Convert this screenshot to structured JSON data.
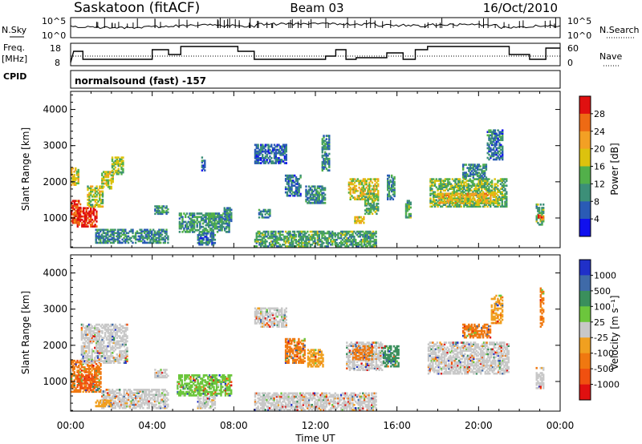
{
  "header": {
    "site": "Saskatoon (fitACF)",
    "beam": "Beam 03",
    "date": "16/Oct/2010"
  },
  "status_panels": {
    "nsky_label": "N.Sky",
    "nsearch_label": "N.Search",
    "nsky_ticks": [
      "10^5",
      "10^0"
    ],
    "nsearch_ticks": [
      "10^5",
      "10^0"
    ],
    "freq_label": "Freq.",
    "freq_unit": "[MHz]",
    "freq_ticks": [
      "18",
      "8"
    ],
    "nave_label": "Nave",
    "nave_ticks": [
      "60",
      "0"
    ],
    "cpid_label": "CPID",
    "cpid_value": "normalsound (fast) -157"
  },
  "chart_data": [
    {
      "type": "heatmap",
      "quantity": "Power",
      "ylabel": "Slant Range [km]",
      "xlabel": "",
      "ylim": [
        180,
        4500
      ],
      "xlim_hours": [
        0,
        24
      ],
      "yticks": [
        1000,
        2000,
        3000,
        4000
      ],
      "colorbar_label": "Power [dB]",
      "colorbar_ticks": [
        "4",
        "8",
        "12",
        "16",
        "20",
        "24",
        "28"
      ],
      "colorbar_colors": [
        "#1010ee",
        "#2a5bb5",
        "#3c8f78",
        "#52b04a",
        "#dcc20e",
        "#f3a024",
        "#ee6a14",
        "#e01010"
      ],
      "regions": [
        {
          "t0": 0.0,
          "t1": 0.5,
          "r0": 850,
          "r1": 1500,
          "v": 28
        },
        {
          "t0": 0.3,
          "t1": 1.3,
          "r0": 750,
          "r1": 1300,
          "v": 30
        },
        {
          "t0": 0.0,
          "t1": 0.4,
          "r0": 1900,
          "r1": 2400,
          "v": 18
        },
        {
          "t0": 0.8,
          "t1": 1.6,
          "r0": 1300,
          "r1": 1900,
          "v": 16
        },
        {
          "t0": 1.5,
          "t1": 2.1,
          "r0": 1800,
          "r1": 2300,
          "v": 17
        },
        {
          "t0": 2.0,
          "t1": 2.6,
          "r0": 2200,
          "r1": 2700,
          "v": 15
        },
        {
          "t0": 1.2,
          "t1": 4.8,
          "r0": 300,
          "r1": 700,
          "v": 9
        },
        {
          "t0": 4.1,
          "t1": 4.8,
          "r0": 1100,
          "r1": 1350,
          "v": 10
        },
        {
          "t0": 5.3,
          "t1": 7.8,
          "r0": 600,
          "r1": 1150,
          "v": 11
        },
        {
          "t0": 6.2,
          "t1": 7.1,
          "r0": 250,
          "r1": 600,
          "v": 8
        },
        {
          "t0": 6.4,
          "t1": 6.6,
          "r0": 2300,
          "r1": 2700,
          "v": 8
        },
        {
          "t0": 7.5,
          "t1": 7.9,
          "r0": 900,
          "r1": 1300,
          "v": 10
        },
        {
          "t0": 9.0,
          "t1": 15.0,
          "r0": 200,
          "r1": 650,
          "v": 12
        },
        {
          "t0": 9.0,
          "t1": 10.6,
          "r0": 2500,
          "r1": 3050,
          "v": 7
        },
        {
          "t0": 9.2,
          "t1": 9.8,
          "r0": 1000,
          "r1": 1250,
          "v": 9
        },
        {
          "t0": 10.5,
          "t1": 11.3,
          "r0": 1600,
          "r1": 2200,
          "v": 8
        },
        {
          "t0": 11.5,
          "t1": 12.5,
          "r0": 1400,
          "r1": 1900,
          "v": 9
        },
        {
          "t0": 12.3,
          "t1": 12.7,
          "r0": 2300,
          "r1": 3300,
          "v": 9
        },
        {
          "t0": 13.6,
          "t1": 15.1,
          "r0": 1500,
          "r1": 2100,
          "v": 18
        },
        {
          "t0": 13.9,
          "t1": 14.4,
          "r0": 850,
          "r1": 1050,
          "v": 20
        },
        {
          "t0": 14.4,
          "t1": 15.1,
          "r0": 1100,
          "r1": 1700,
          "v": 13
        },
        {
          "t0": 15.5,
          "t1": 15.9,
          "r0": 1500,
          "r1": 2200,
          "v": 10
        },
        {
          "t0": 16.4,
          "t1": 16.7,
          "r0": 1000,
          "r1": 1500,
          "v": 12
        },
        {
          "t0": 17.6,
          "t1": 21.4,
          "r0": 1300,
          "r1": 2100,
          "v": 14
        },
        {
          "t0": 18.0,
          "t1": 20.9,
          "r0": 1400,
          "r1": 1700,
          "v": 20
        },
        {
          "t0": 19.2,
          "t1": 20.4,
          "r0": 2100,
          "r1": 2500,
          "v": 9
        },
        {
          "t0": 20.4,
          "t1": 21.2,
          "r0": 2600,
          "r1": 3450,
          "v": 8
        },
        {
          "t0": 22.8,
          "t1": 23.2,
          "r0": 800,
          "r1": 1400,
          "v": 12
        },
        {
          "t0": 22.9,
          "t1": 23.2,
          "r0": 900,
          "r1": 1100,
          "v": 26
        }
      ]
    },
    {
      "type": "heatmap",
      "quantity": "Velocity",
      "ylabel": "Slant Range [km]",
      "xlabel": "Time UT",
      "ylim": [
        180,
        4500
      ],
      "xlim_hours": [
        0,
        24
      ],
      "yticks": [
        1000,
        2000,
        3000,
        4000
      ],
      "xticks": [
        "00:00",
        "04:00",
        "08:00",
        "12:00",
        "16:00",
        "20:00",
        "00:00"
      ],
      "colorbar_label": "Velocity [m s⁻¹]",
      "colorbar_ticks": [
        "1000",
        "500",
        "100",
        "25",
        "-25",
        "-100",
        "-500",
        "-1000"
      ],
      "colorbar_colors": [
        "#2030c8",
        "#3f6aa8",
        "#3a8f5c",
        "#6cc63c",
        "#c8c8c8",
        "#f0a020",
        "#f07810",
        "#f05010",
        "#e01010"
      ],
      "regions": [
        {
          "t0": 0.0,
          "t1": 1.5,
          "r0": 700,
          "r1": 1600,
          "c": "#f07810"
        },
        {
          "t0": 0.3,
          "t1": 1.2,
          "r0": 800,
          "r1": 1200,
          "c": "#f05010"
        },
        {
          "t0": 0.5,
          "t1": 2.8,
          "r0": 1500,
          "r1": 2600,
          "c": "#c8c8c8"
        },
        {
          "t0": 1.5,
          "t1": 4.8,
          "r0": 250,
          "r1": 800,
          "c": "#c8c8c8"
        },
        {
          "t0": 1.2,
          "t1": 2.0,
          "r0": 300,
          "r1": 500,
          "c": "#f0a020"
        },
        {
          "t0": 4.1,
          "t1": 4.8,
          "r0": 1100,
          "r1": 1350,
          "c": "#c8c8c8"
        },
        {
          "t0": 5.2,
          "t1": 7.9,
          "r0": 600,
          "r1": 1200,
          "c": "#6cc63c"
        },
        {
          "t0": 6.2,
          "t1": 7.1,
          "r0": 250,
          "r1": 600,
          "c": "#c8c8c8"
        },
        {
          "t0": 9.0,
          "t1": 15.0,
          "r0": 200,
          "r1": 700,
          "c": "#c8c8c8"
        },
        {
          "t0": 9.0,
          "t1": 10.6,
          "r0": 2500,
          "r1": 3050,
          "c": "#c8c8c8"
        },
        {
          "t0": 10.5,
          "t1": 11.5,
          "r0": 1500,
          "r1": 2200,
          "c": "#f07810"
        },
        {
          "t0": 11.6,
          "t1": 12.4,
          "r0": 1400,
          "r1": 1900,
          "c": "#f0a020"
        },
        {
          "t0": 13.5,
          "t1": 15.3,
          "r0": 1300,
          "r1": 2100,
          "c": "#c8c8c8"
        },
        {
          "t0": 13.8,
          "t1": 14.8,
          "r0": 1600,
          "r1": 2000,
          "c": "#f07810"
        },
        {
          "t0": 15.3,
          "t1": 16.1,
          "r0": 1400,
          "r1": 2000,
          "c": "#3a8f5c"
        },
        {
          "t0": 17.5,
          "t1": 21.5,
          "r0": 1200,
          "r1": 2100,
          "c": "#c8c8c8"
        },
        {
          "t0": 19.2,
          "t1": 20.6,
          "r0": 2200,
          "r1": 2600,
          "c": "#f07810"
        },
        {
          "t0": 20.6,
          "t1": 21.2,
          "r0": 2600,
          "r1": 3400,
          "c": "#f0a020"
        },
        {
          "t0": 22.8,
          "t1": 23.2,
          "r0": 800,
          "r1": 1400,
          "c": "#c8c8c8"
        },
        {
          "t0": 23.0,
          "t1": 23.2,
          "r0": 2500,
          "r1": 3600,
          "c": "#f07810"
        }
      ]
    }
  ]
}
